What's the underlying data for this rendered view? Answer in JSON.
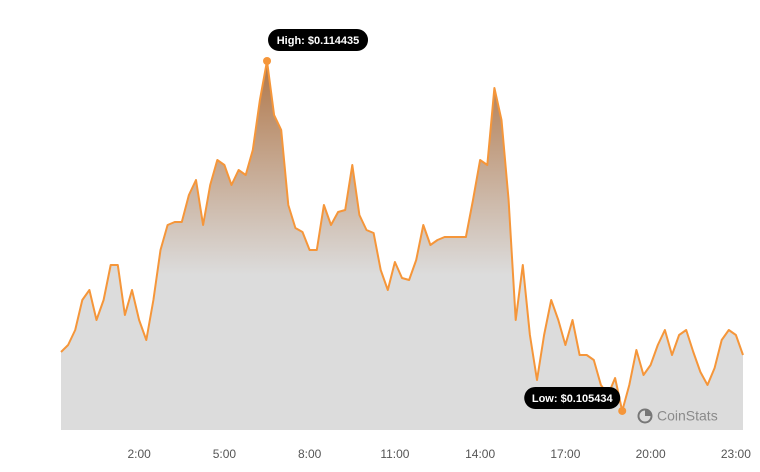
{
  "chart_data": {
    "type": "area",
    "x": [
      -0.75,
      -0.5,
      -0.25,
      0,
      0.25,
      0.5,
      0.75,
      1,
      1.25,
      1.5,
      1.75,
      2,
      2.25,
      2.5,
      2.75,
      3,
      3.25,
      3.5,
      3.75,
      4,
      4.25,
      4.5,
      4.75,
      5,
      5.25,
      5.5,
      5.75,
      6,
      6.25,
      6.5,
      6.75,
      7,
      7.25,
      7.5,
      7.75,
      8,
      8.25,
      8.5,
      8.75,
      9,
      9.25,
      9.5,
      9.75,
      10,
      10.25,
      10.5,
      10.75,
      11,
      11.25,
      11.5,
      11.75,
      12,
      12.25,
      12.5,
      12.75,
      13,
      13.25,
      13.5,
      13.75,
      14,
      14.25,
      14.5,
      14.75,
      15,
      15.25,
      15.5,
      15.75,
      16,
      16.25,
      16.5,
      16.75,
      17,
      17.25,
      17.5,
      17.75,
      18,
      18.25,
      18.5,
      18.75,
      19,
      19.25,
      19.5,
      19.75,
      20,
      20.25,
      20.5,
      20.75,
      21,
      21.25,
      21.5,
      21.75,
      22,
      22.25,
      22.5,
      22.75,
      23,
      23.25
    ],
    "series": [
      {
        "color": "#f5963a",
        "values": [
          0.10695,
          0.107131,
          0.107516,
          0.108288,
          0.108545,
          0.107774,
          0.108288,
          0.109188,
          0.109188,
          0.107902,
          0.108545,
          0.107774,
          0.107259,
          0.108288,
          0.109574,
          0.110217,
          0.110294,
          0.110294,
          0.110989,
          0.111374,
          0.110217,
          0.111246,
          0.111889,
          0.11176,
          0.111246,
          0.111632,
          0.111503,
          0.112146,
          0.113432,
          0.114435,
          0.113046,
          0.11266,
          0.110731,
          0.11014,
          0.110037,
          0.109574,
          0.109574,
          0.110731,
          0.110217,
          0.110551,
          0.110603,
          0.11176,
          0.110474,
          0.110088,
          0.110011,
          0.10906,
          0.108545,
          0.109265,
          0.108854,
          0.108802,
          0.109317,
          0.110217,
          0.109703,
          0.109831,
          0.109908,
          0.109908,
          0.109908,
          0.109908,
          0.11086,
          0.111889,
          0.11176,
          0.113741,
          0.112918,
          0.11086,
          0.107774,
          0.109188,
          0.107388,
          0.10623,
          0.107388,
          0.108288,
          0.107774,
          0.107131,
          0.107774,
          0.106873,
          0.106873,
          0.106745,
          0.106102,
          0.105845,
          0.106282,
          0.105434,
          0.106102,
          0.107002,
          0.106359,
          0.106616,
          0.107131,
          0.107516,
          0.106873,
          0.107388,
          0.107516,
          0.10695,
          0.106436,
          0.106102,
          0.106539,
          0.107259,
          0.107516,
          0.107388,
          0.106873
        ]
      }
    ],
    "xlim": [
      -0.75,
      23.25
    ],
    "ylim": [
      0.104944,
      0.11549
    ],
    "xticks": [
      {
        "value": 2,
        "label": "2:00"
      },
      {
        "value": 5,
        "label": "5:00"
      },
      {
        "value": 8,
        "label": "8:00"
      },
      {
        "value": 11,
        "label": "11:00"
      },
      {
        "value": 14,
        "label": "14:00"
      },
      {
        "value": 17,
        "label": "17:00"
      },
      {
        "value": 20,
        "label": "20:00"
      },
      {
        "value": 23,
        "label": "23:00"
      }
    ],
    "annotations": {
      "high": "High: $0.114435",
      "low": "Low: $0.105434"
    },
    "watermark": "CoinStats"
  }
}
